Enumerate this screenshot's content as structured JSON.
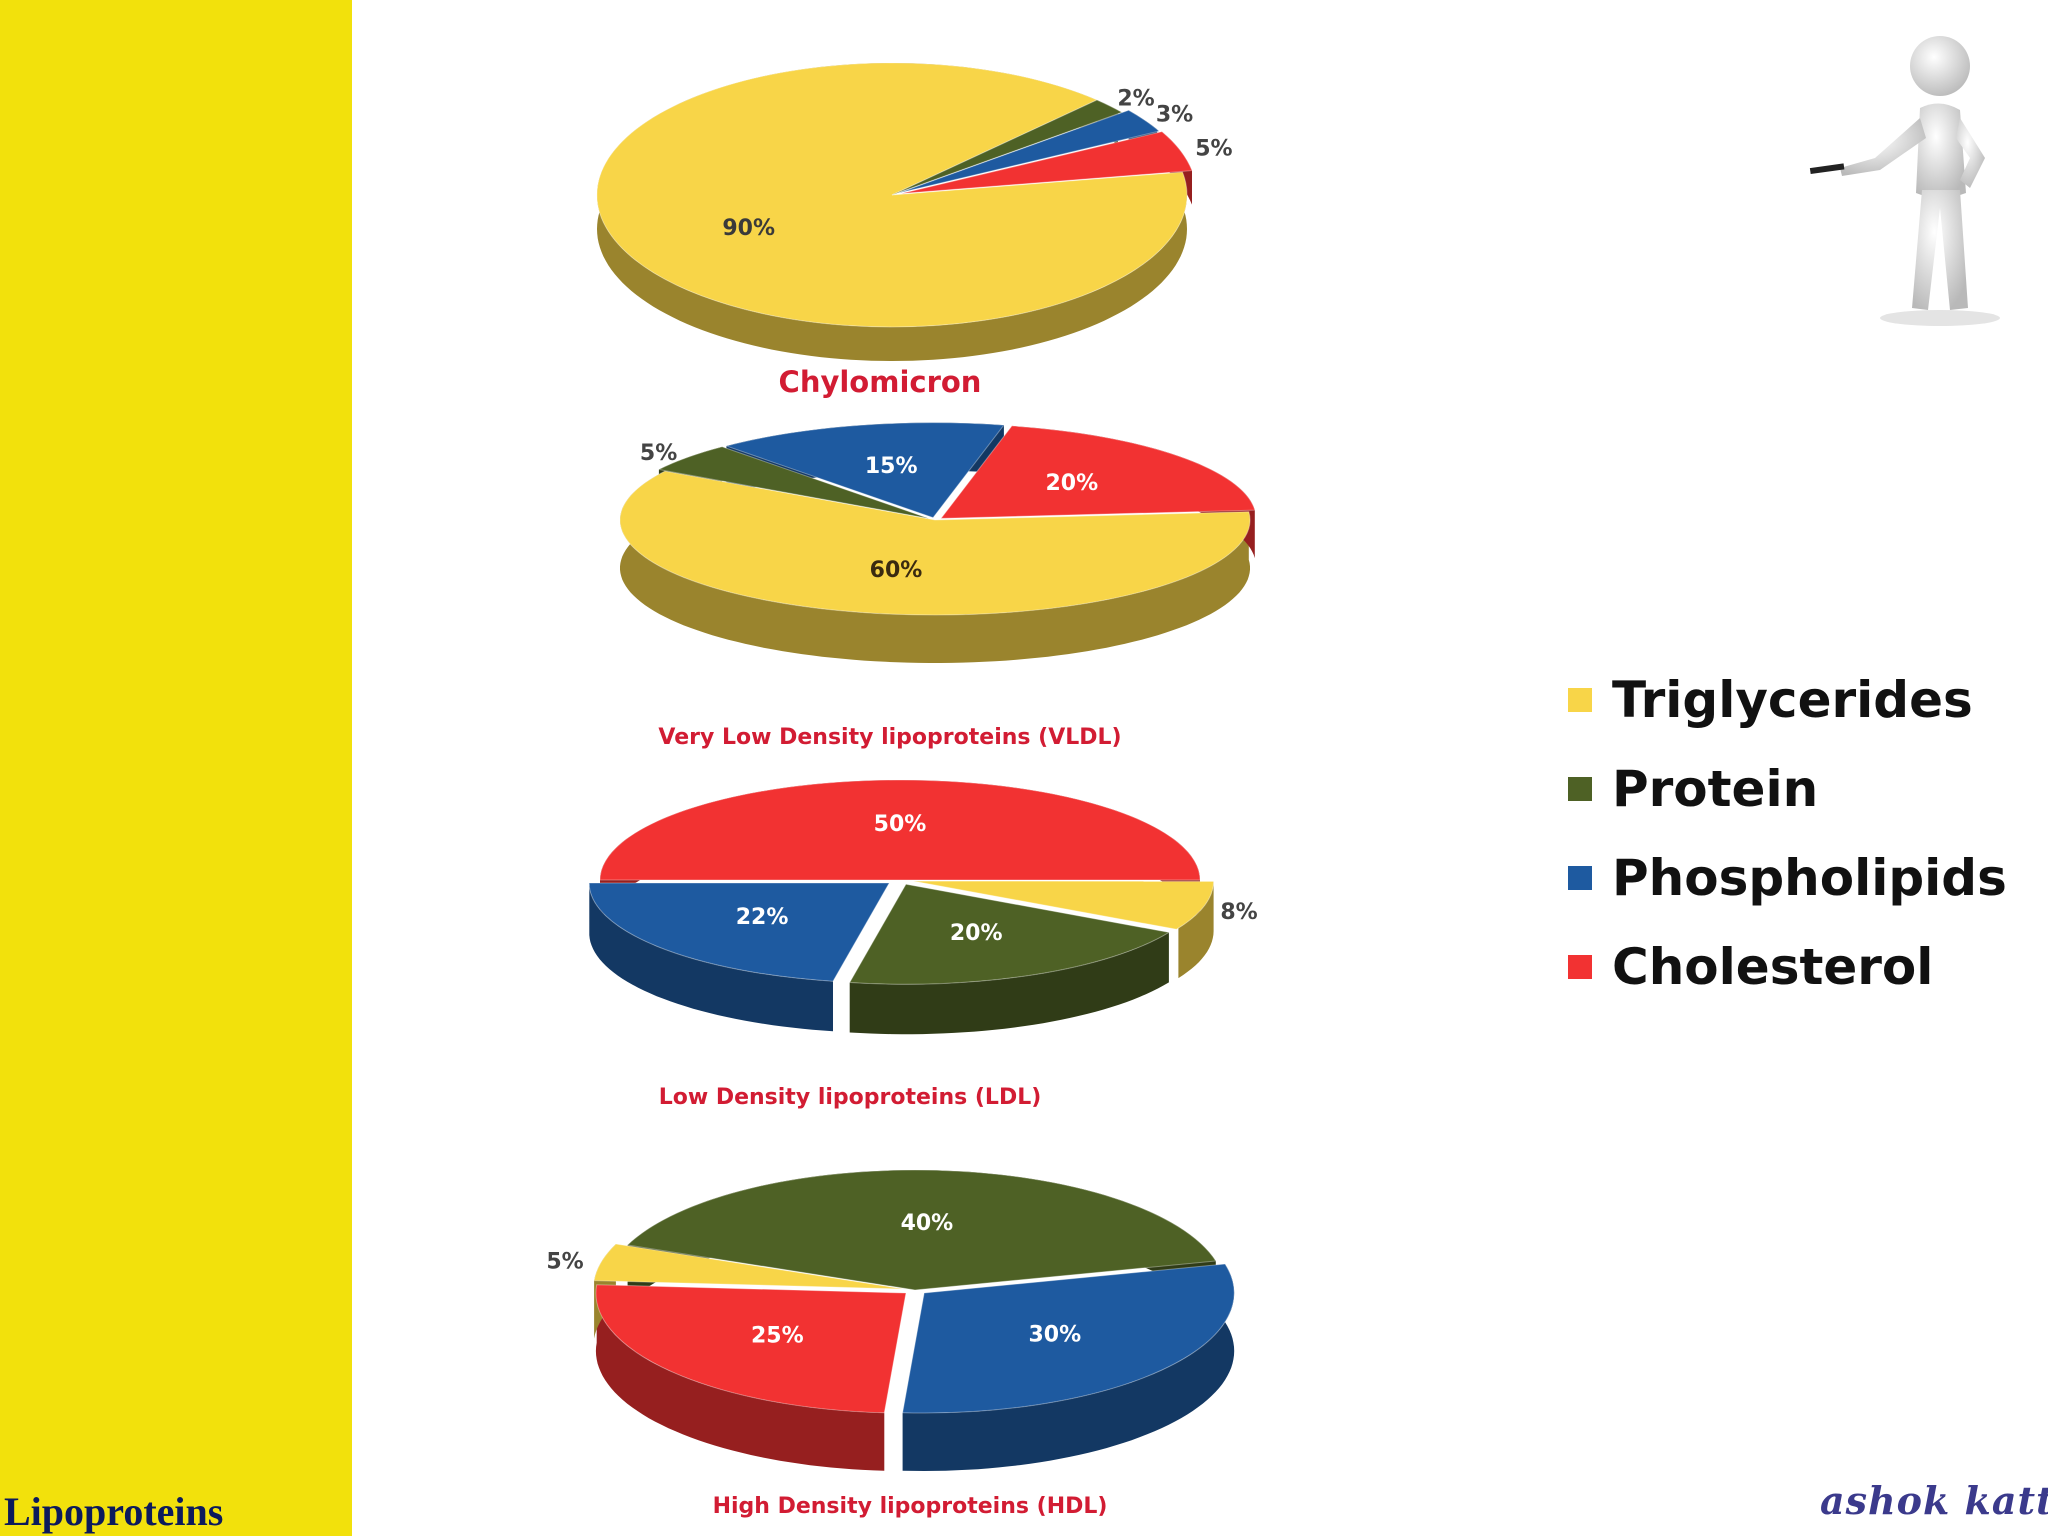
{
  "slide": {
    "title": "Lipoproteins",
    "signature": "ashok katta"
  },
  "legend": [
    {
      "label": "Triglycerides",
      "color": "#f8d548"
    },
    {
      "label": "Protein",
      "color": "#4e6125"
    },
    {
      "label": "Phospholipids",
      "color": "#1e5aa0"
    },
    {
      "label": "Cholesterol",
      "color": "#f23232"
    }
  ],
  "chart_data": [
    {
      "type": "pie",
      "title": "Chylomicron",
      "slices": [
        {
          "name": "Triglycerides",
          "value": 90,
          "label": "90%"
        },
        {
          "name": "Protein",
          "value": 2,
          "label": "2%"
        },
        {
          "name": "Phospholipids",
          "value": 3,
          "label": "3%"
        },
        {
          "name": "Cholesterol",
          "value": 5,
          "label": "5%"
        }
      ]
    },
    {
      "type": "pie",
      "title": "Very Low Density lipoproteins (VLDL)",
      "slices": [
        {
          "name": "Triglycerides",
          "value": 60,
          "label": "60%"
        },
        {
          "name": "Protein",
          "value": 5,
          "label": "5%"
        },
        {
          "name": "Phospholipids",
          "value": 15,
          "label": "15%"
        },
        {
          "name": "Cholesterol",
          "value": 20,
          "label": "20%"
        }
      ]
    },
    {
      "type": "pie",
      "title": "Low Density lipoproteins (LDL)",
      "slices": [
        {
          "name": "Cholesterol",
          "value": 50,
          "label": "50%"
        },
        {
          "name": "Triglycerides",
          "value": 8,
          "label": "8%"
        },
        {
          "name": "Protein",
          "value": 20,
          "label": "20%"
        },
        {
          "name": "Phospholipids",
          "value": 22,
          "label": "22%"
        }
      ]
    },
    {
      "type": "pie",
      "title": "High Density lipoproteins (HDL)",
      "slices": [
        {
          "name": "Protein",
          "value": 40,
          "label": "40%"
        },
        {
          "name": "Phospholipids",
          "value": 30,
          "label": "30%"
        },
        {
          "name": "Cholesterol",
          "value": 25,
          "label": "25%"
        },
        {
          "name": "Triglycerides",
          "value": 5,
          "label": "5%"
        }
      ]
    }
  ]
}
